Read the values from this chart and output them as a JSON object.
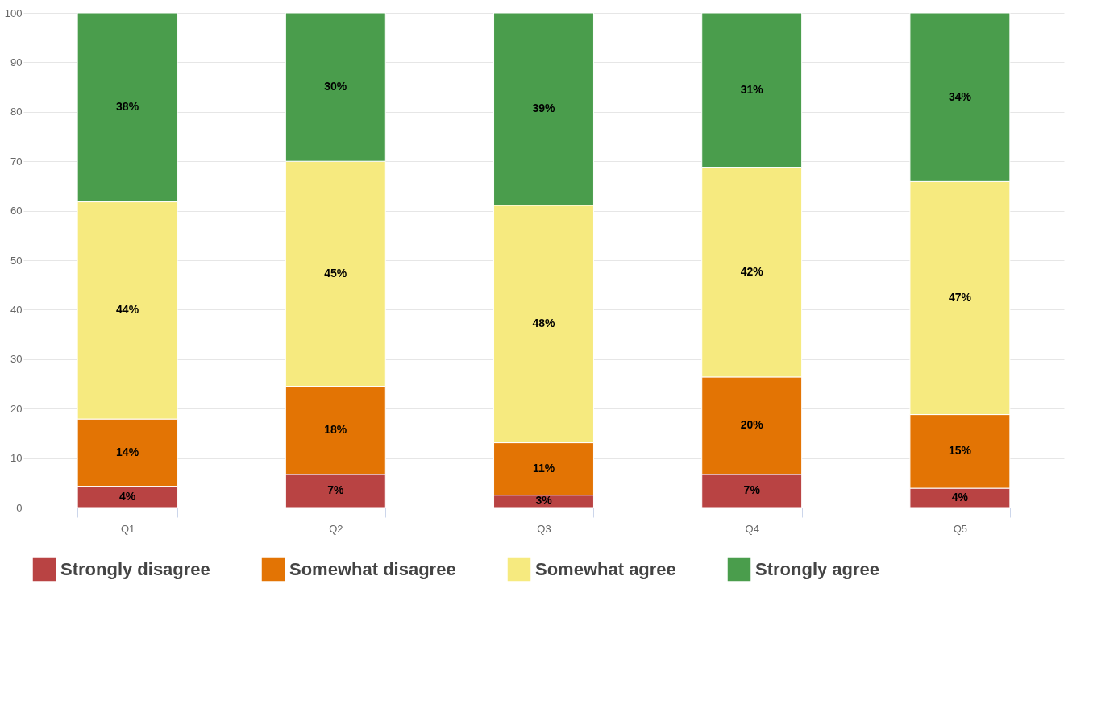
{
  "chart_data": {
    "type": "bar",
    "stacked": true,
    "categories": [
      "Q1",
      "Q2",
      "Q3",
      "Q4",
      "Q5"
    ],
    "series": [
      {
        "name": "Strongly disagree",
        "color": "#b94343",
        "values": [
          4.3,
          6.7,
          2.5,
          6.7,
          3.9
        ],
        "value_labels": [
          "4%",
          "7%",
          "3%",
          "7%",
          "4%"
        ]
      },
      {
        "name": "Somewhat disagree",
        "color": "#e37404",
        "values": [
          13.6,
          17.8,
          10.6,
          19.7,
          14.9
        ],
        "value_labels": [
          "14%",
          "18%",
          "11%",
          "20%",
          "15%"
        ]
      },
      {
        "name": "Somewhat agree",
        "color": "#f6ea7f",
        "values": [
          43.9,
          45.5,
          48,
          42.4,
          47.1
        ],
        "value_labels": [
          "44%",
          "45%",
          "48%",
          "42%",
          "47%"
        ]
      },
      {
        "name": "Strongly agree",
        "color": "#4a9d4c",
        "values": [
          38.2,
          30,
          38.9,
          31.2,
          34.1
        ],
        "value_labels": [
          "38%",
          "30%",
          "39%",
          "31%",
          "34%"
        ]
      }
    ],
    "ylim": [
      0,
      100
    ],
    "yticks": [
      0,
      10,
      20,
      30,
      40,
      50,
      60,
      70,
      80,
      90,
      100
    ],
    "grid": "y",
    "legend": "bottom"
  }
}
